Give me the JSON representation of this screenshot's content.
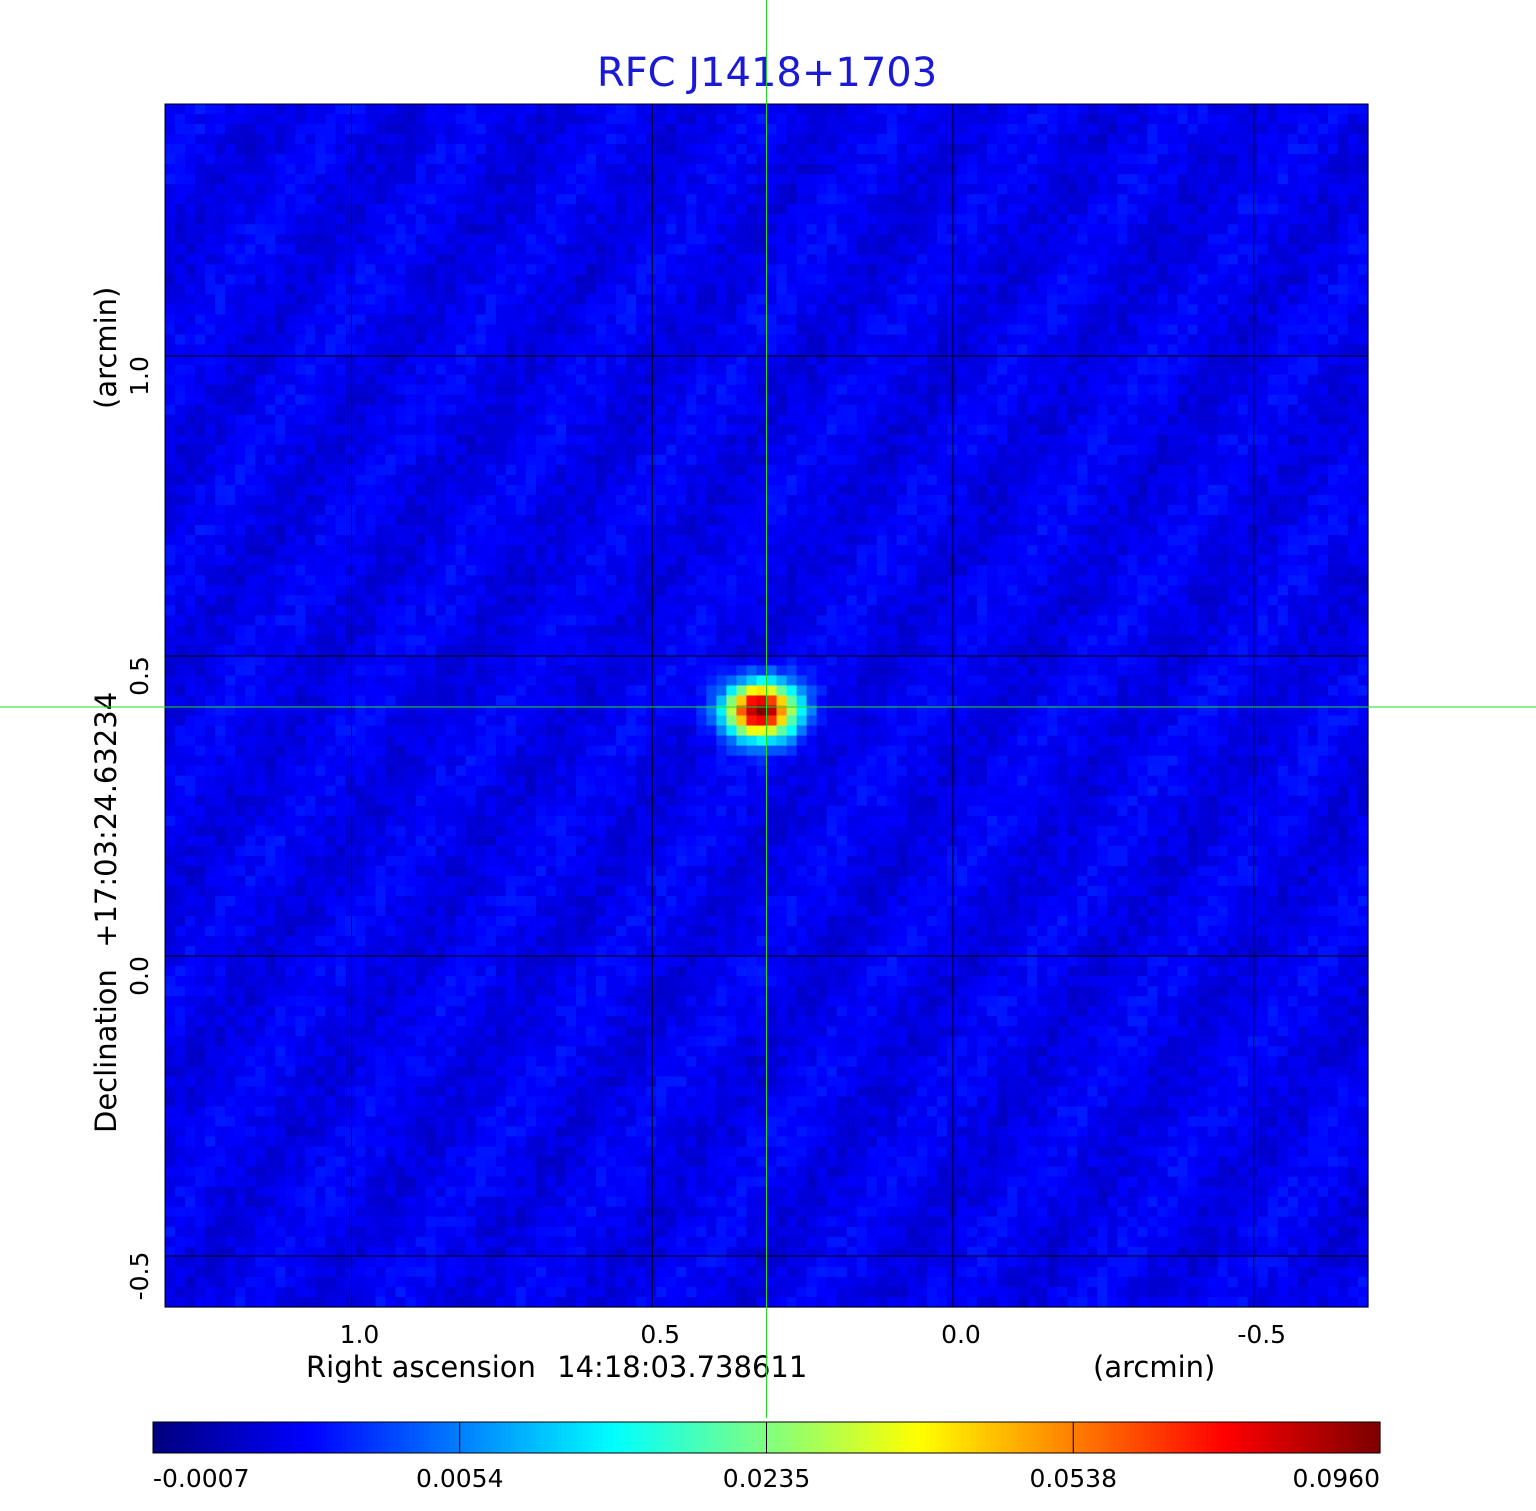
{
  "chart_data": {
    "type": "heatmap",
    "title": "RFC J1418+1703",
    "xlabel": {
      "prefix": "Right ascension",
      "center": "14:18:03.738611",
      "unit": "(arcmin)"
    },
    "ylabel": {
      "prefix": "Declination",
      "center": "+17:03:24.63234",
      "unit": "(arcmin)"
    },
    "xlim": [
      1.31,
      -0.69
    ],
    "ylim": [
      -0.585,
      1.42
    ],
    "x_ticks": [
      1.0,
      0.5,
      0.0,
      -0.5
    ],
    "x_tick_labels": [
      "1.0",
      "0.5",
      "0.0",
      "-0.5"
    ],
    "y_ticks": [
      1.0,
      0.5,
      0.0,
      -0.5
    ],
    "y_tick_labels": [
      "1.0",
      "0.5",
      "0.0",
      "-0.5"
    ],
    "grid": true,
    "source": {
      "x": 0.32,
      "y": 0.41,
      "peak": 0.096
    },
    "crosshair": {
      "x": 0.31,
      "y": 0.415,
      "color": "#22dd22"
    },
    "colorbar": {
      "colormap": "jet",
      "placement": "bottom",
      "ticks": [
        -0.0007,
        0.0054,
        0.0235,
        0.0538,
        0.096
      ],
      "tick_labels": [
        "-0.0007",
        "0.0054",
        "0.0235",
        "0.0538",
        "0.0960"
      ]
    },
    "colors": {
      "title": "#1a1ad6",
      "grid": "#000000",
      "crosshair": "#22dd22"
    }
  }
}
